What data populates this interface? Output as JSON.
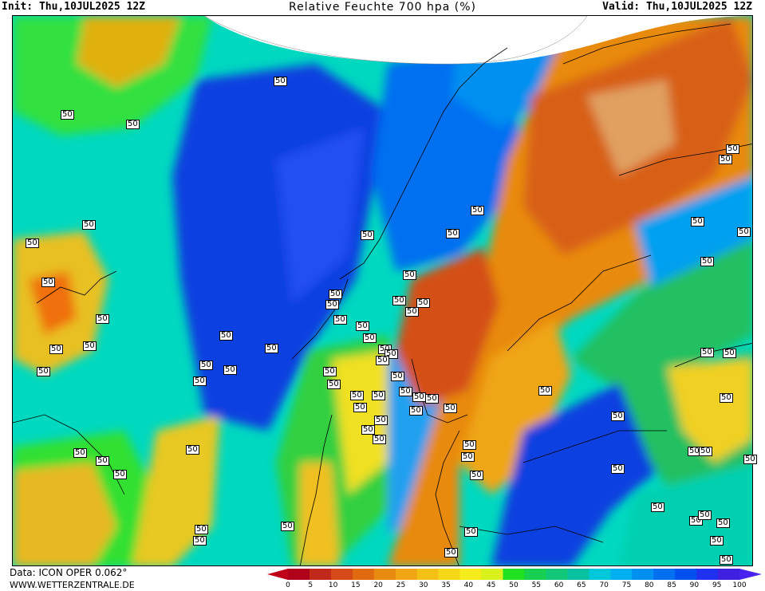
{
  "header": {
    "init": "Init: Thu,10JUL2025 12Z",
    "title": "Relative Feuchte 700 hpa (%)",
    "valid": "Valid: Thu,10JUL2025 12Z"
  },
  "footer": {
    "data_source": "Data: ICON OPER 0.062°",
    "website": "WWW.WETTERZENTRALE.DE"
  },
  "contour_value": "50",
  "legend": {
    "ticks": [
      "0",
      "5",
      "10",
      "15",
      "20",
      "25",
      "30",
      "35",
      "40",
      "45",
      "50",
      "55",
      "60",
      "65",
      "70",
      "75",
      "80",
      "85",
      "90",
      "95",
      "100"
    ],
    "colors": [
      "#b0001a",
      "#c0281a",
      "#d44a18",
      "#e06a10",
      "#e68a10",
      "#efa612",
      "#f5c015",
      "#f7d818",
      "#f5ec1a",
      "#d8f01c",
      "#20e020",
      "#18d050",
      "#10c878",
      "#08c0a0",
      "#00c8d8",
      "#00b0f0",
      "#0090f0",
      "#0070f0",
      "#0050f0",
      "#2030f0",
      "#4020e0"
    ],
    "low_arrow_color": "#c00018",
    "high_arrow_color": "#4a22f0"
  }
}
